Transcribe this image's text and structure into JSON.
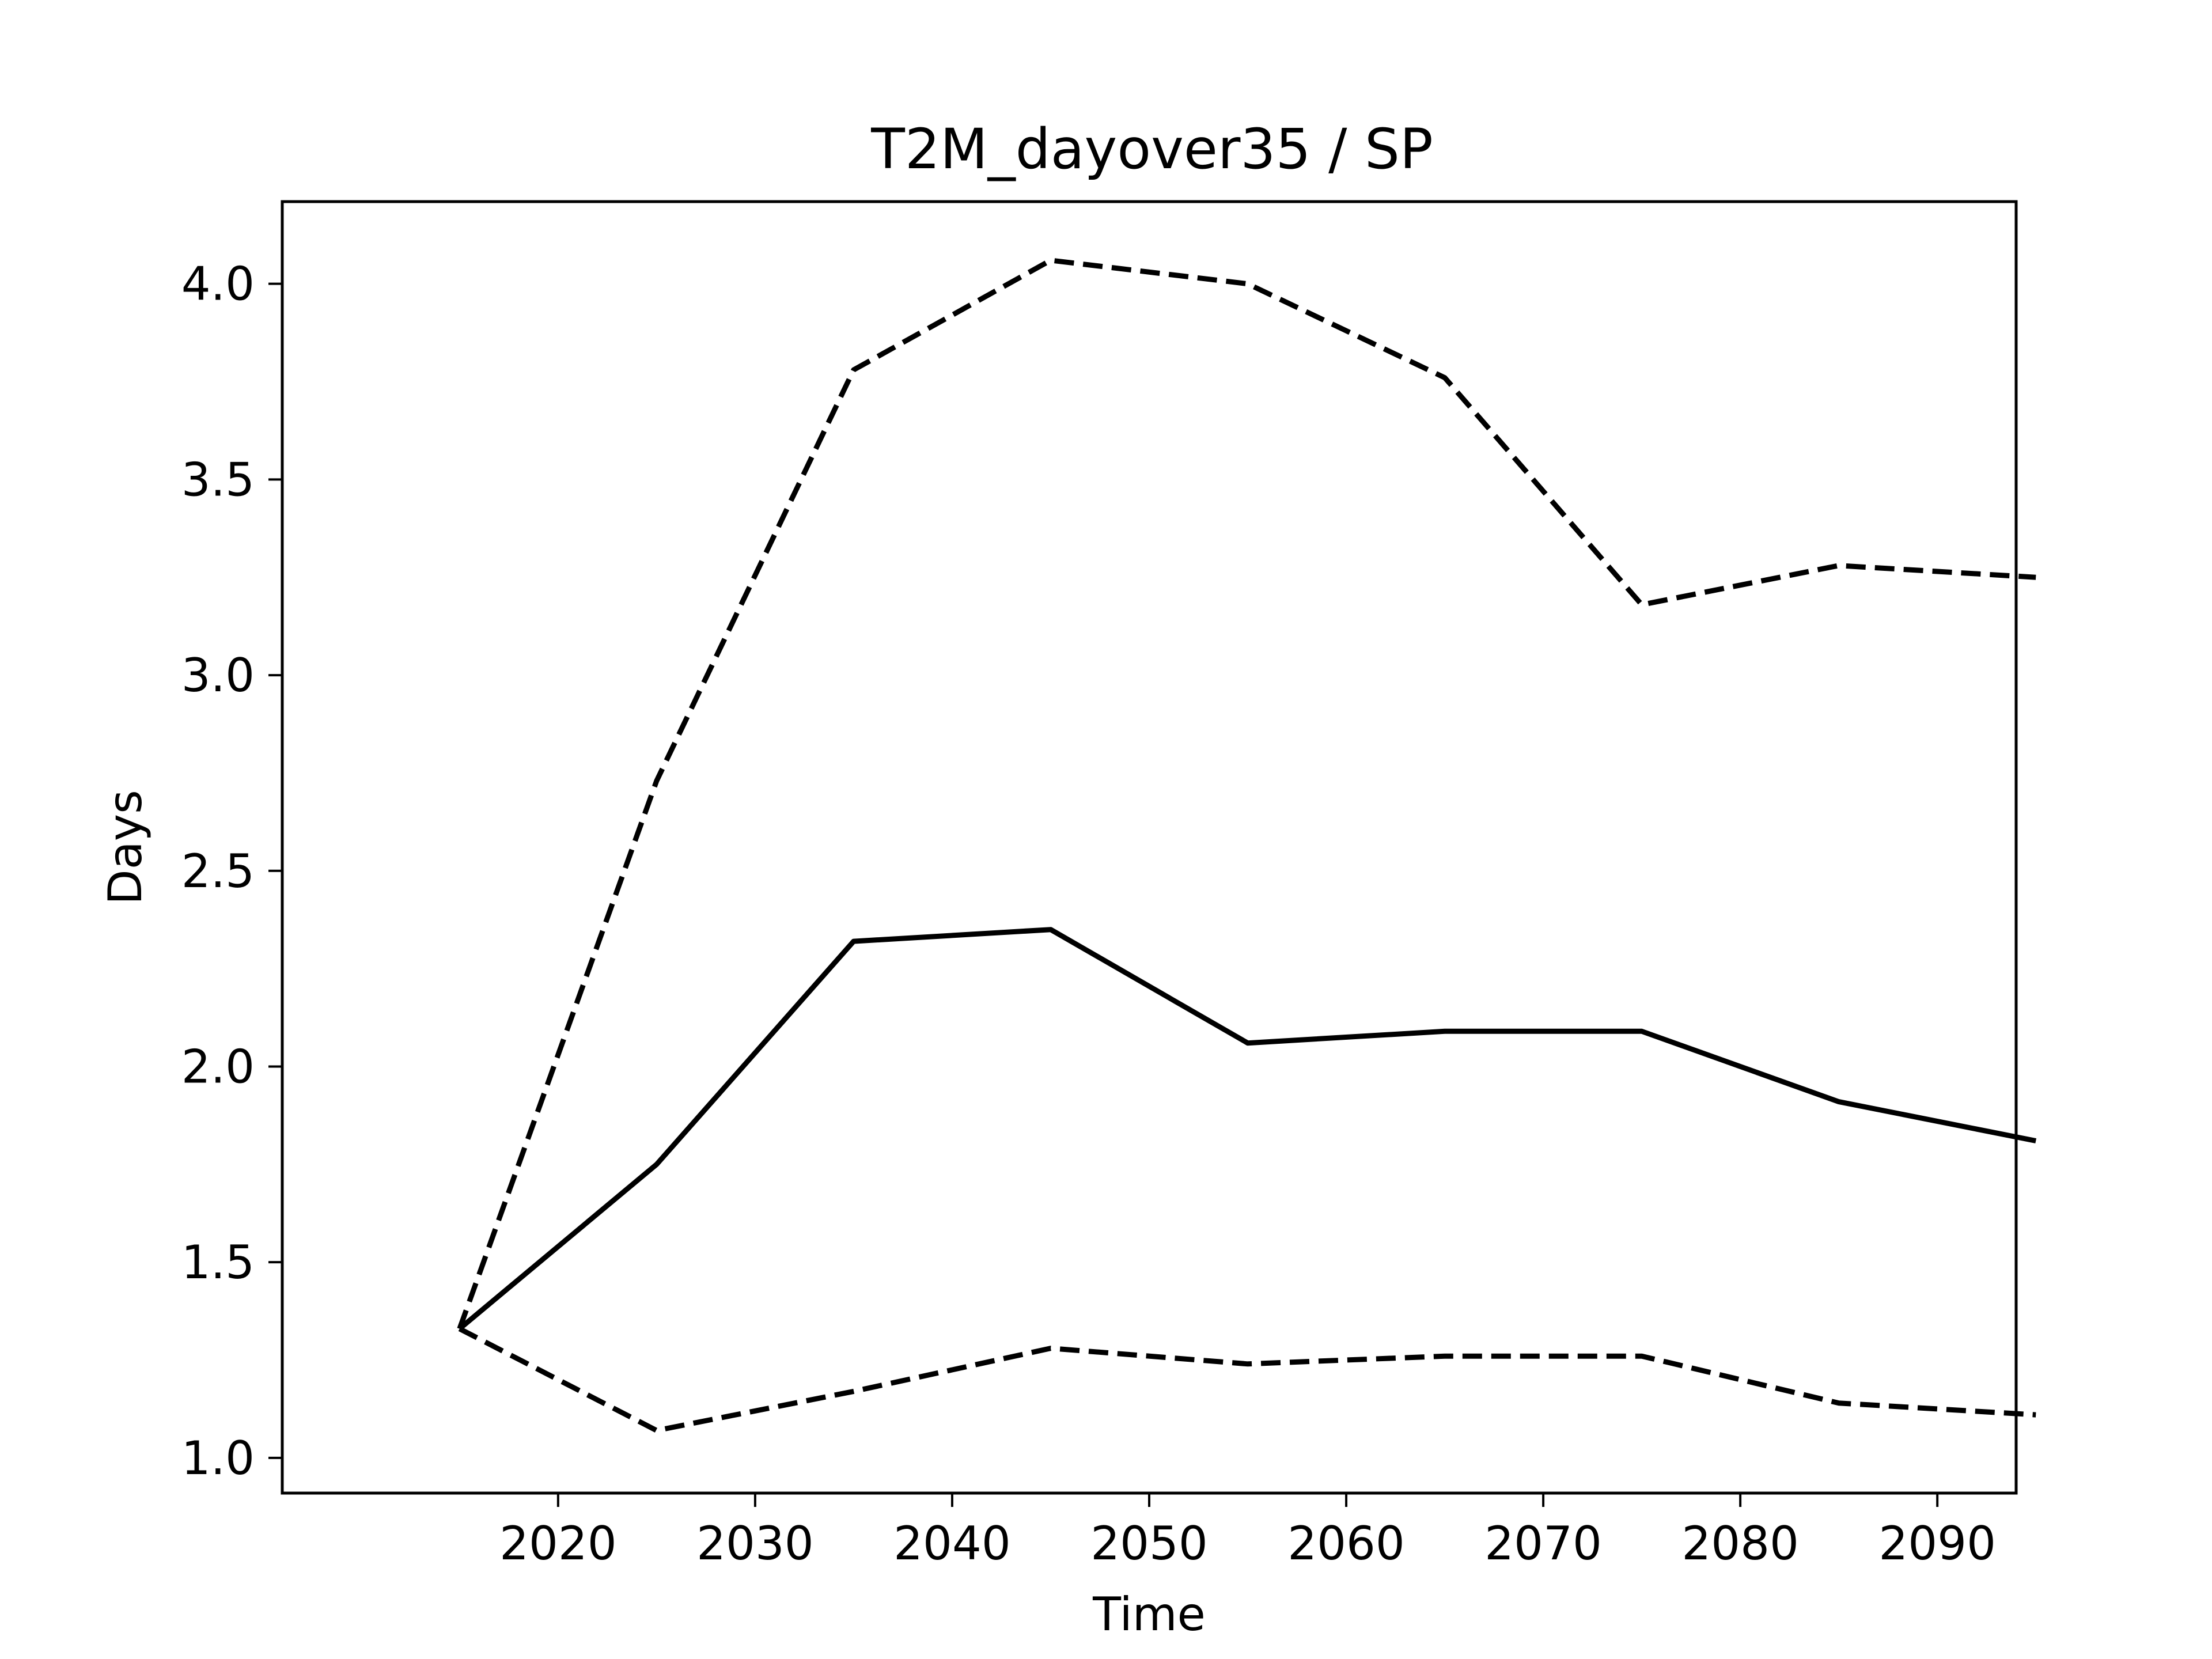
{
  "chart_data": {
    "type": "line",
    "title": "T2M_dayover35 / SP",
    "xlabel": "Time",
    "ylabel": "Days",
    "x": [
      2015,
      2025,
      2035,
      2045,
      2055,
      2065,
      2075,
      2085,
      2095
    ],
    "xlim": [
      2006,
      2094
    ],
    "ylim": [
      0.91,
      4.21
    ],
    "xticks": [
      2020,
      2030,
      2040,
      2050,
      2060,
      2070,
      2080,
      2090
    ],
    "yticks": [
      1.0,
      1.5,
      2.0,
      2.5,
      3.0,
      3.5,
      4.0
    ],
    "xtick_labels": [
      "2020",
      "2030",
      "2040",
      "2050",
      "2060",
      "2070",
      "2080",
      "2090"
    ],
    "ytick_labels": [
      "1.0",
      "1.5",
      "2.0",
      "2.5",
      "3.0",
      "3.5",
      "4.0"
    ],
    "grid": false,
    "legend": false,
    "series": [
      {
        "values": [
          1.33,
          1.75,
          2.32,
          2.35,
          2.06,
          2.09,
          2.09,
          1.91,
          1.81
        ],
        "style": "solid",
        "color": "#000000"
      },
      {
        "values": [
          1.33,
          2.73,
          3.78,
          4.06,
          4.0,
          3.76,
          3.18,
          3.28,
          3.25
        ],
        "style": "dashed",
        "color": "#000000"
      },
      {
        "values": [
          1.33,
          1.07,
          1.17,
          1.28,
          1.24,
          1.26,
          1.26,
          1.14,
          1.11
        ],
        "style": "dashed",
        "color": "#000000"
      }
    ]
  }
}
